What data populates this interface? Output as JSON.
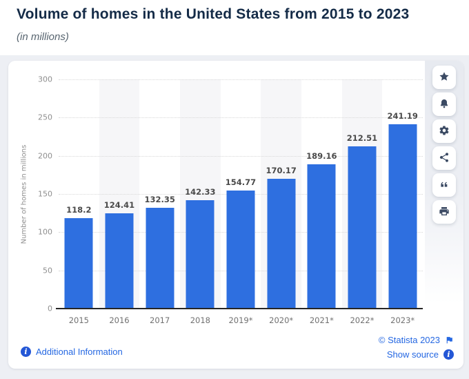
{
  "header": {
    "title": "Volume of homes in the United States from 2015 to 2023",
    "subtitle": "(in millions)"
  },
  "chart_data": {
    "type": "bar",
    "title": "Volume of homes in the United States from 2015 to 2023",
    "subtitle": "(in millions)",
    "categories": [
      "2015",
      "2016",
      "2017",
      "2018",
      "2019*",
      "2020*",
      "2021*",
      "2022*",
      "2023*"
    ],
    "values": [
      118.2,
      124.41,
      132.35,
      142.33,
      154.77,
      170.17,
      189.16,
      212.51,
      241.19
    ],
    "xlabel": "",
    "ylabel": "Number of homes in millions",
    "ylim": [
      0,
      300
    ],
    "yticks": [
      0,
      50,
      100,
      150,
      200,
      250,
      300
    ],
    "grid": true,
    "legend": false,
    "bar_color": "#2e6fe0",
    "band_color": "#f6f6f8"
  },
  "toolbar": {
    "buttons": [
      {
        "name": "favorite",
        "icon": "star-icon"
      },
      {
        "name": "alerts",
        "icon": "bell-icon"
      },
      {
        "name": "settings",
        "icon": "gear-icon"
      },
      {
        "name": "share",
        "icon": "share-icon"
      },
      {
        "name": "cite",
        "icon": "quote-icon"
      },
      {
        "name": "print",
        "icon": "printer-icon"
      }
    ]
  },
  "footer": {
    "additional_info": "Additional Information",
    "copyright": "© Statista 2023",
    "show_source": "Show source"
  },
  "colors": {
    "accent_blue": "#2e6fe0",
    "link_blue": "#2467e2",
    "icon_navy": "#3b4a63",
    "page_background": "#edeff4"
  }
}
